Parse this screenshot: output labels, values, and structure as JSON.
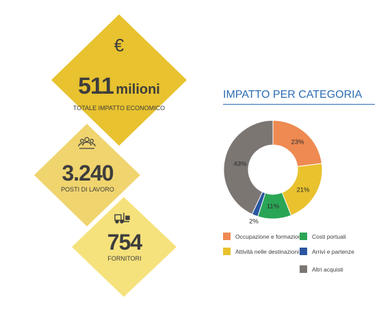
{
  "stats": {
    "economic": {
      "icon": "euro-icon",
      "symbol": "€",
      "number": "511",
      "unit": "milioni",
      "label": "TOTALE IMPATTO ECONOMICO",
      "color": "#e8c22f"
    },
    "jobs": {
      "icon": "people-icon",
      "number": "3.240",
      "label": "POSTI DI LAVORO",
      "color": "#f0d46e"
    },
    "suppliers": {
      "icon": "forklift-icon",
      "number": "754",
      "label": "FORNITORI",
      "color": "#f5e27c"
    }
  },
  "chart_data": {
    "type": "pie",
    "donut": true,
    "title": "IMPATTO PER CATEGORIA",
    "slices": [
      {
        "name": "Occupazione e formazione",
        "value": 23,
        "label": "23%",
        "color": "#ee8a52"
      },
      {
        "name": "Attività nelle destinazioni",
        "value": 21,
        "label": "21%",
        "color": "#e9c22e"
      },
      {
        "name": "Costi portuali",
        "value": 11,
        "label": "11%",
        "color": "#2aa556"
      },
      {
        "name": "Arrivi e partenze",
        "value": 2,
        "label": "2%",
        "color": "#2a55a0"
      },
      {
        "name": "Altri acquisti",
        "value": 43,
        "label": "43%",
        "color": "#7c7673"
      }
    ],
    "legend_position": "bottom"
  }
}
